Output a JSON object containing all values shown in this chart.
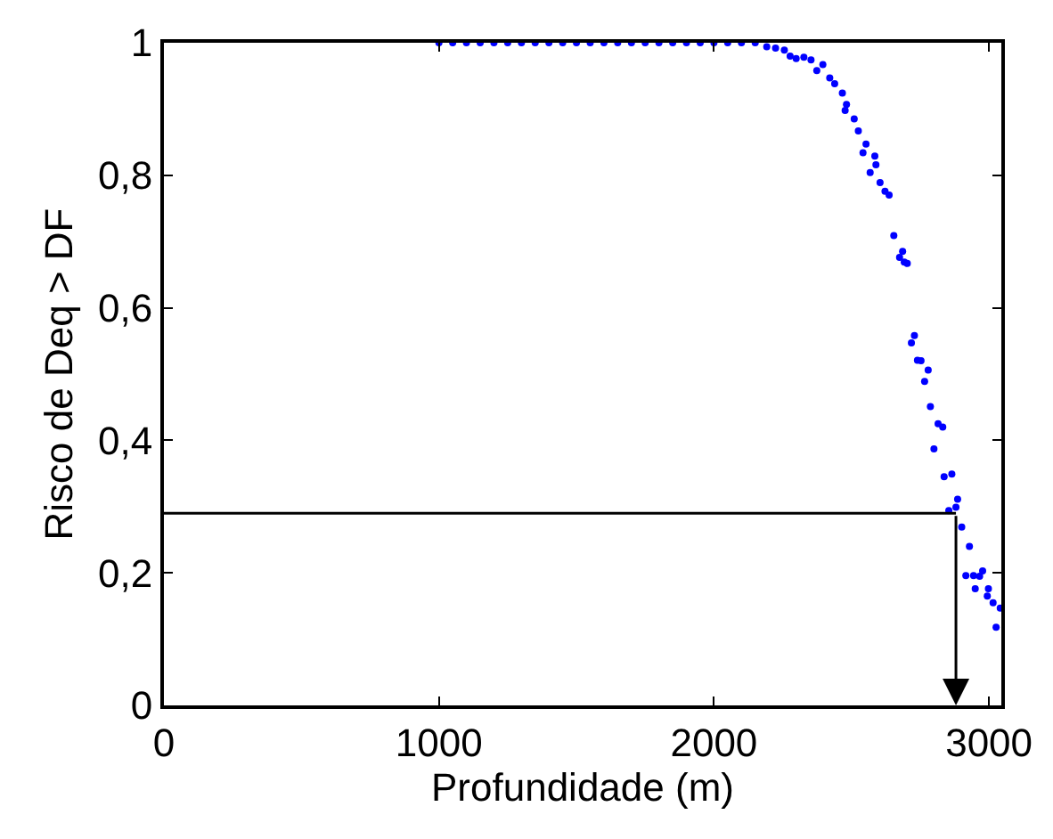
{
  "chart_data": {
    "type": "scatter",
    "xlabel": "Profundidade (m)",
    "ylabel": "Risco de Deq > DF",
    "xlim": [
      0,
      3045
    ],
    "ylim": [
      0,
      1
    ],
    "xticks": [
      0,
      1000,
      2000,
      3000
    ],
    "yticks": [
      0,
      {
        "value": 0.2,
        "label": "0,2"
      },
      {
        "value": 0.4,
        "label": "0,4"
      },
      {
        "value": 0.6,
        "label": "0,6"
      },
      {
        "value": 0.8,
        "label": "0,8"
      },
      1
    ],
    "marker": "circle",
    "series": [
      {
        "color": "#0000ff",
        "x": [
          1000,
          1050,
          1100,
          1150,
          1200,
          1250,
          1300,
          1350,
          1400,
          1450,
          1500,
          1550,
          1600,
          1650,
          1700,
          1750,
          1800,
          1850,
          1900,
          1950,
          2000,
          2050,
          2100,
          2150,
          2192,
          2224,
          2256,
          2277,
          2299,
          2327,
          2353,
          2374,
          2396,
          2421,
          2439,
          2467,
          2482,
          2477,
          2510,
          2525,
          2553,
          2542,
          2585,
          2589,
          2568,
          2604,
          2622,
          2637,
          2654,
          2686,
          2675,
          2692,
          2703,
          2729,
          2718,
          2740,
          2753,
          2779,
          2766,
          2787,
          2815,
          2832,
          2800,
          2837,
          2865,
          2886,
          2880,
          2854,
          2901,
          2929,
          2916,
          2944,
          2966,
          2977,
          2950,
          2998,
          2994,
          3015,
          3041,
          3026
        ],
        "values": [
          1,
          1,
          1,
          1,
          1,
          1,
          1,
          1,
          1,
          1,
          1,
          1,
          1,
          1,
          1,
          1,
          1,
          1,
          1,
          1,
          1,
          1,
          1,
          1,
          0.994,
          0.992,
          0.989,
          0.98,
          0.976,
          0.978,
          0.974,
          0.958,
          0.967,
          0.947,
          0.938,
          0.924,
          0.907,
          0.898,
          0.885,
          0.867,
          0.847,
          0.834,
          0.829,
          0.816,
          0.804,
          0.789,
          0.776,
          0.77,
          0.709,
          0.685,
          0.676,
          0.669,
          0.667,
          0.558,
          0.547,
          0.521,
          0.52,
          0.506,
          0.489,
          0.451,
          0.425,
          0.42,
          0.387,
          0.345,
          0.349,
          0.311,
          0.299,
          0.294,
          0.269,
          0.24,
          0.196,
          0.196,
          0.195,
          0.203,
          0.176,
          0.176,
          0.165,
          0.155,
          0.147,
          0.118
        ]
      }
    ],
    "ref_lines": [
      {
        "axis": "y",
        "value": 0.29,
        "color": "#000000"
      },
      {
        "axis": "x",
        "value": 2880,
        "color": "#000000"
      }
    ]
  }
}
